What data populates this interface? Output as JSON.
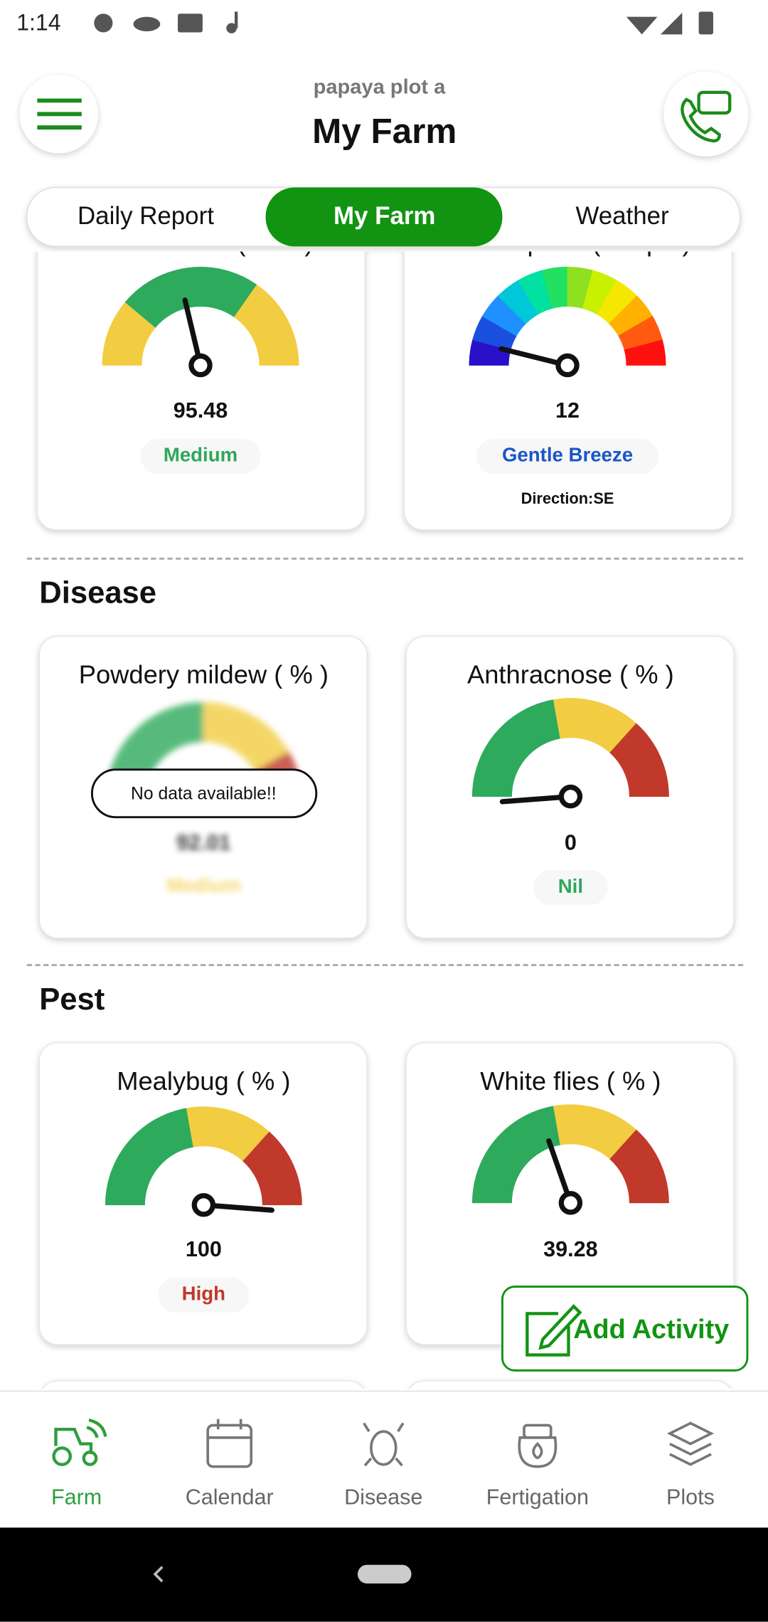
{
  "status_bar": {
    "time": "1:14"
  },
  "header": {
    "subtitle": "papaya plot a",
    "title": "My Farm"
  },
  "tabs": [
    "Daily Report",
    "My Farm",
    "Weather"
  ],
  "weather_cards": [
    {
      "title": "Air Pressure ( kPa )",
      "value": "95.48",
      "status": "Medium"
    },
    {
      "title": "Wind Speed ( Kmph )",
      "value": "12",
      "status": "Gentle Breeze",
      "extra": "Direction:SE"
    }
  ],
  "sections": [
    {
      "title": "Disease",
      "cards": [
        {
          "title": "Powdery mildew ( % )",
          "value": "92.01",
          "status": "Medium",
          "overlay": "No data available!!"
        },
        {
          "title": "Anthracnose ( % )",
          "value": "0",
          "status": "Nil"
        }
      ]
    },
    {
      "title": "Pest",
      "cards": [
        {
          "title": "Mealybug ( % )",
          "value": "100",
          "status": "High"
        },
        {
          "title": "White flies ( % )",
          "value": "39.28"
        }
      ]
    }
  ],
  "add_activity": "Add Activity",
  "bottom_nav": [
    "Farm",
    "Calendar",
    "Disease",
    "Fertigation",
    "Plots"
  ]
}
